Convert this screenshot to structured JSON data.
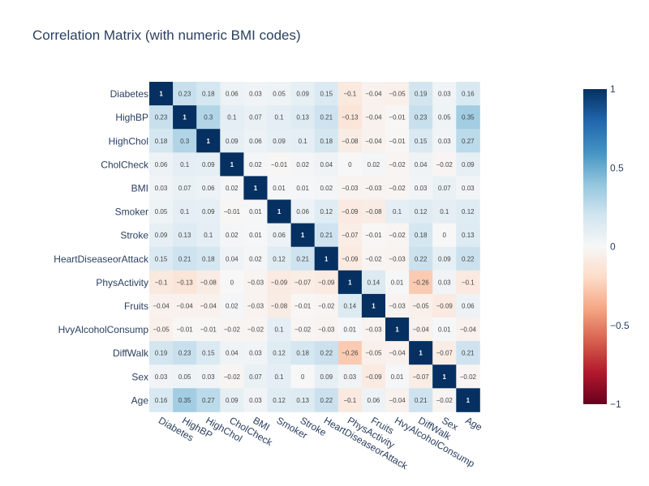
{
  "chart_data": {
    "type": "heatmap",
    "title": "Correlation Matrix (with numeric BMI codes)",
    "xlabel": "",
    "ylabel": "",
    "labels": [
      "Diabetes",
      "HighBP",
      "HighChol",
      "CholCheck",
      "BMI",
      "Smoker",
      "Stroke",
      "HeartDiseaseorAttack",
      "PhysActivity",
      "Fruits",
      "HvyAlcoholConsump",
      "DiffWalk",
      "Sex",
      "Age"
    ],
    "matrix": [
      [
        1,
        0.23,
        0.18,
        0.06,
        0.03,
        0.05,
        0.09,
        0.15,
        -0.1,
        -0.04,
        -0.05,
        0.19,
        0.03,
        0.16
      ],
      [
        0.23,
        1,
        0.3,
        0.1,
        0.07,
        0.1,
        0.13,
        0.21,
        -0.13,
        -0.04,
        -0.01,
        0.23,
        0.05,
        0.35
      ],
      [
        0.18,
        0.3,
        1,
        0.09,
        0.06,
        0.09,
        0.1,
        0.18,
        -0.08,
        -0.04,
        -0.01,
        0.15,
        0.03,
        0.27
      ],
      [
        0.06,
        0.1,
        0.09,
        1,
        0.02,
        -0.01,
        0.02,
        0.04,
        0,
        0.02,
        -0.02,
        0.04,
        -0.02,
        0.09
      ],
      [
        0.03,
        0.07,
        0.06,
        0.02,
        1,
        0.01,
        0.01,
        0.02,
        -0.03,
        -0.03,
        -0.02,
        0.03,
        0.07,
        0.03
      ],
      [
        0.05,
        0.1,
        0.09,
        -0.01,
        0.01,
        1,
        0.06,
        0.12,
        -0.09,
        -0.08,
        0.1,
        0.12,
        0.1,
        0.12
      ],
      [
        0.09,
        0.13,
        0.1,
        0.02,
        0.01,
        0.06,
        1,
        0.21,
        -0.07,
        -0.01,
        -0.02,
        0.18,
        0,
        0.13
      ],
      [
        0.15,
        0.21,
        0.18,
        0.04,
        0.02,
        0.12,
        0.21,
        1,
        -0.09,
        -0.02,
        -0.03,
        0.22,
        0.09,
        0.22
      ],
      [
        -0.1,
        -0.13,
        -0.08,
        0,
        -0.03,
        -0.09,
        -0.07,
        -0.09,
        1,
        0.14,
        0.01,
        -0.26,
        0.03,
        -0.1
      ],
      [
        -0.04,
        -0.04,
        -0.04,
        0.02,
        -0.03,
        -0.08,
        -0.01,
        -0.02,
        0.14,
        1,
        -0.03,
        -0.05,
        -0.09,
        0.06
      ],
      [
        -0.05,
        -0.01,
        -0.01,
        -0.02,
        -0.02,
        0.1,
        -0.02,
        -0.03,
        0.01,
        -0.03,
        1,
        -0.04,
        0.01,
        -0.04
      ],
      [
        0.19,
        0.23,
        0.15,
        0.04,
        0.03,
        0.12,
        0.18,
        0.22,
        -0.26,
        -0.05,
        -0.04,
        1,
        -0.07,
        0.21
      ],
      [
        0.03,
        0.05,
        0.03,
        -0.02,
        0.07,
        0.1,
        0,
        0.09,
        0.03,
        -0.09,
        0.01,
        -0.07,
        1,
        -0.02
      ],
      [
        0.16,
        0.35,
        0.27,
        0.09,
        0.03,
        0.12,
        0.13,
        0.22,
        -0.1,
        0.06,
        -0.04,
        0.21,
        -0.02,
        1
      ]
    ],
    "zlim": [
      -1,
      1
    ],
    "colorscale": "RdBu",
    "colorbar_ticks": [
      1,
      0.5,
      0,
      -0.5,
      -1
    ],
    "colorbar_tick_labels": [
      "1",
      "0.5",
      "0",
      "−0.5",
      "−1"
    ],
    "grid": false
  }
}
